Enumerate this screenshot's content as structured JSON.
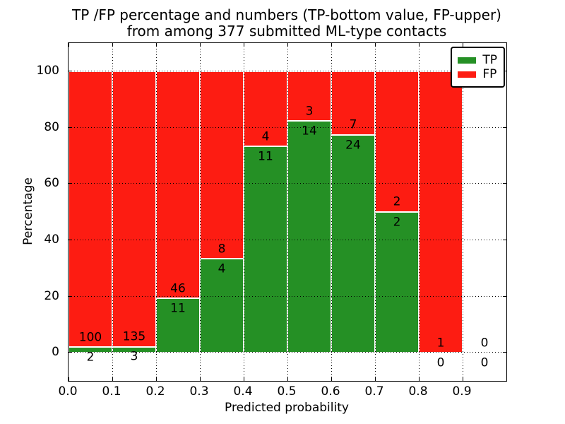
{
  "chart_data": {
    "type": "bar",
    "stacked": true,
    "title": "TP /FP percentage and numbers (TP-bottom value, FP-upper) from among 377 submitted ML-type contacts",
    "title_lines": [
      "TP /FP percentage and numbers (TP-bottom value, FP-upper)",
      "from among 377 submitted ML-type contacts"
    ],
    "xlabel": "Predicted probability",
    "ylabel": "Percentage",
    "xlim": [
      0.0,
      1.0
    ],
    "ylim": [
      -10,
      110
    ],
    "xticks": [
      0.0,
      0.1,
      0.2,
      0.3,
      0.4,
      0.5,
      0.6,
      0.7,
      0.8,
      0.9
    ],
    "xtick_labels": [
      "0.0",
      "0.1",
      "0.2",
      "0.3",
      "0.4",
      "0.5",
      "0.6",
      "0.7",
      "0.8",
      "0.9"
    ],
    "yticks": [
      0,
      20,
      40,
      60,
      80,
      100
    ],
    "ytick_labels": [
      "0",
      "20",
      "40",
      "60",
      "80",
      "100"
    ],
    "grid": true,
    "grid_style": "dotted",
    "legend_position": "upper right",
    "legend": [
      {
        "label": "TP",
        "key": "tp"
      },
      {
        "label": "FP",
        "key": "fp"
      }
    ],
    "colors": {
      "tp": "#259025",
      "fp": "#fd1c12"
    },
    "total_label": "377",
    "bins": [
      {
        "range": [
          0.0,
          0.1
        ],
        "tp": 2,
        "fp": 100
      },
      {
        "range": [
          0.1,
          0.2
        ],
        "tp": 3,
        "fp": 135
      },
      {
        "range": [
          0.2,
          0.3
        ],
        "tp": 11,
        "fp": 46
      },
      {
        "range": [
          0.3,
          0.4
        ],
        "tp": 4,
        "fp": 8
      },
      {
        "range": [
          0.4,
          0.5
        ],
        "tp": 11,
        "fp": 4
      },
      {
        "range": [
          0.5,
          0.6
        ],
        "tp": 14,
        "fp": 3
      },
      {
        "range": [
          0.6,
          0.7
        ],
        "tp": 24,
        "fp": 7
      },
      {
        "range": [
          0.7,
          0.8
        ],
        "tp": 2,
        "fp": 2
      },
      {
        "range": [
          0.8,
          0.9
        ],
        "tp": 0,
        "fp": 1
      },
      {
        "range": [
          0.9,
          1.0
        ],
        "tp": 0,
        "fp": 0
      }
    ]
  }
}
